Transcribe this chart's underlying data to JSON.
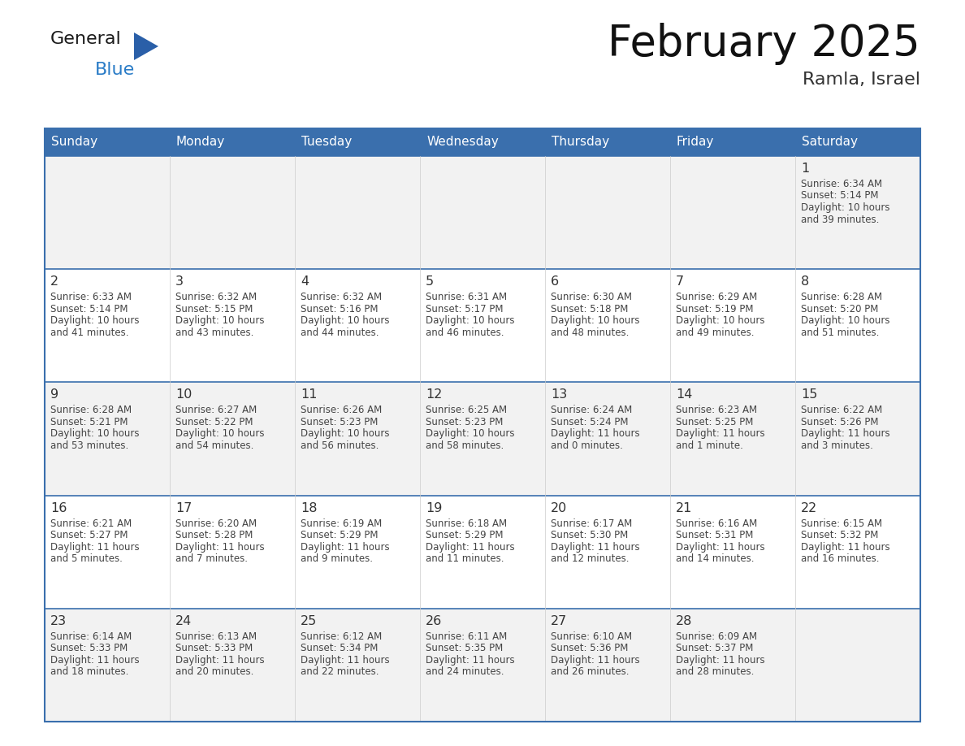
{
  "title": "February 2025",
  "subtitle": "Ramla, Israel",
  "days_of_week": [
    "Sunday",
    "Monday",
    "Tuesday",
    "Wednesday",
    "Thursday",
    "Friday",
    "Saturday"
  ],
  "header_bg": "#3a6fad",
  "header_text_color": "#ffffff",
  "cell_bg_light": "#f2f2f2",
  "cell_bg_white": "#ffffff",
  "text_color": "#333333",
  "border_color": "#3a6fad",
  "logo_black": "#1a1a1a",
  "logo_blue_text": "#2a7cc7",
  "logo_triangle": "#2a5fa8",
  "calendar": [
    [
      null,
      null,
      null,
      null,
      null,
      null,
      {
        "day": "1",
        "sunrise": "6:34 AM",
        "sunset": "5:14 PM",
        "dl1": "Daylight: 10 hours",
        "dl2": "and 39 minutes."
      }
    ],
    [
      {
        "day": "2",
        "sunrise": "6:33 AM",
        "sunset": "5:14 PM",
        "dl1": "Daylight: 10 hours",
        "dl2": "and 41 minutes."
      },
      {
        "day": "3",
        "sunrise": "6:32 AM",
        "sunset": "5:15 PM",
        "dl1": "Daylight: 10 hours",
        "dl2": "and 43 minutes."
      },
      {
        "day": "4",
        "sunrise": "6:32 AM",
        "sunset": "5:16 PM",
        "dl1": "Daylight: 10 hours",
        "dl2": "and 44 minutes."
      },
      {
        "day": "5",
        "sunrise": "6:31 AM",
        "sunset": "5:17 PM",
        "dl1": "Daylight: 10 hours",
        "dl2": "and 46 minutes."
      },
      {
        "day": "6",
        "sunrise": "6:30 AM",
        "sunset": "5:18 PM",
        "dl1": "Daylight: 10 hours",
        "dl2": "and 48 minutes."
      },
      {
        "day": "7",
        "sunrise": "6:29 AM",
        "sunset": "5:19 PM",
        "dl1": "Daylight: 10 hours",
        "dl2": "and 49 minutes."
      },
      {
        "day": "8",
        "sunrise": "6:28 AM",
        "sunset": "5:20 PM",
        "dl1": "Daylight: 10 hours",
        "dl2": "and 51 minutes."
      }
    ],
    [
      {
        "day": "9",
        "sunrise": "6:28 AM",
        "sunset": "5:21 PM",
        "dl1": "Daylight: 10 hours",
        "dl2": "and 53 minutes."
      },
      {
        "day": "10",
        "sunrise": "6:27 AM",
        "sunset": "5:22 PM",
        "dl1": "Daylight: 10 hours",
        "dl2": "and 54 minutes."
      },
      {
        "day": "11",
        "sunrise": "6:26 AM",
        "sunset": "5:23 PM",
        "dl1": "Daylight: 10 hours",
        "dl2": "and 56 minutes."
      },
      {
        "day": "12",
        "sunrise": "6:25 AM",
        "sunset": "5:23 PM",
        "dl1": "Daylight: 10 hours",
        "dl2": "and 58 minutes."
      },
      {
        "day": "13",
        "sunrise": "6:24 AM",
        "sunset": "5:24 PM",
        "dl1": "Daylight: 11 hours",
        "dl2": "and 0 minutes."
      },
      {
        "day": "14",
        "sunrise": "6:23 AM",
        "sunset": "5:25 PM",
        "dl1": "Daylight: 11 hours",
        "dl2": "and 1 minute."
      },
      {
        "day": "15",
        "sunrise": "6:22 AM",
        "sunset": "5:26 PM",
        "dl1": "Daylight: 11 hours",
        "dl2": "and 3 minutes."
      }
    ],
    [
      {
        "day": "16",
        "sunrise": "6:21 AM",
        "sunset": "5:27 PM",
        "dl1": "Daylight: 11 hours",
        "dl2": "and 5 minutes."
      },
      {
        "day": "17",
        "sunrise": "6:20 AM",
        "sunset": "5:28 PM",
        "dl1": "Daylight: 11 hours",
        "dl2": "and 7 minutes."
      },
      {
        "day": "18",
        "sunrise": "6:19 AM",
        "sunset": "5:29 PM",
        "dl1": "Daylight: 11 hours",
        "dl2": "and 9 minutes."
      },
      {
        "day": "19",
        "sunrise": "6:18 AM",
        "sunset": "5:29 PM",
        "dl1": "Daylight: 11 hours",
        "dl2": "and 11 minutes."
      },
      {
        "day": "20",
        "sunrise": "6:17 AM",
        "sunset": "5:30 PM",
        "dl1": "Daylight: 11 hours",
        "dl2": "and 12 minutes."
      },
      {
        "day": "21",
        "sunrise": "6:16 AM",
        "sunset": "5:31 PM",
        "dl1": "Daylight: 11 hours",
        "dl2": "and 14 minutes."
      },
      {
        "day": "22",
        "sunrise": "6:15 AM",
        "sunset": "5:32 PM",
        "dl1": "Daylight: 11 hours",
        "dl2": "and 16 minutes."
      }
    ],
    [
      {
        "day": "23",
        "sunrise": "6:14 AM",
        "sunset": "5:33 PM",
        "dl1": "Daylight: 11 hours",
        "dl2": "and 18 minutes."
      },
      {
        "day": "24",
        "sunrise": "6:13 AM",
        "sunset": "5:33 PM",
        "dl1": "Daylight: 11 hours",
        "dl2": "and 20 minutes."
      },
      {
        "day": "25",
        "sunrise": "6:12 AM",
        "sunset": "5:34 PM",
        "dl1": "Daylight: 11 hours",
        "dl2": "and 22 minutes."
      },
      {
        "day": "26",
        "sunrise": "6:11 AM",
        "sunset": "5:35 PM",
        "dl1": "Daylight: 11 hours",
        "dl2": "and 24 minutes."
      },
      {
        "day": "27",
        "sunrise": "6:10 AM",
        "sunset": "5:36 PM",
        "dl1": "Daylight: 11 hours",
        "dl2": "and 26 minutes."
      },
      {
        "day": "28",
        "sunrise": "6:09 AM",
        "sunset": "5:37 PM",
        "dl1": "Daylight: 11 hours",
        "dl2": "and 28 minutes."
      },
      null
    ]
  ]
}
